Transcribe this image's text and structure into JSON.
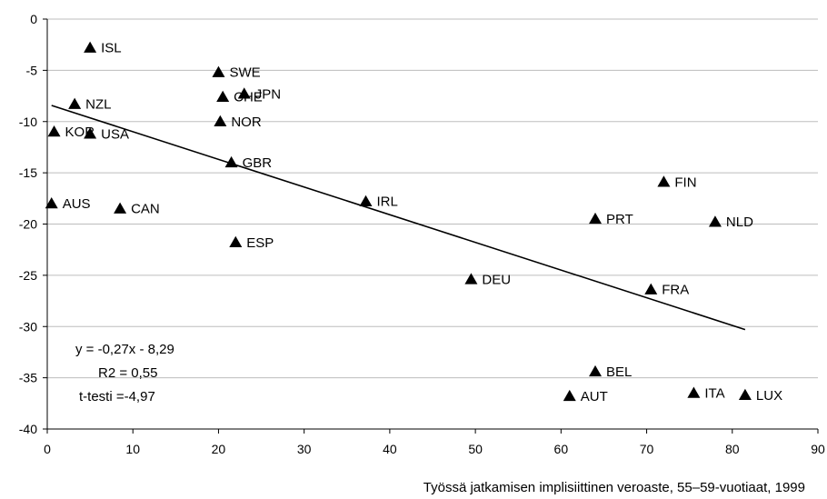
{
  "chart_data": {
    "type": "scatter",
    "title": "",
    "xlabel": "Työssä jatkamisen implisiittinen veroaste, 55–59-vuotiaat, 1999",
    "ylabel": "",
    "xlim": [
      0,
      90
    ],
    "ylim": [
      -40,
      0
    ],
    "xticks": [
      0,
      10,
      20,
      30,
      40,
      50,
      60,
      70,
      80,
      90
    ],
    "yticks": [
      0,
      -5,
      -10,
      -15,
      -20,
      -25,
      -30,
      -35,
      -40
    ],
    "grid": "horizontal",
    "legend": "none",
    "marker": "triangle",
    "marker_color": "#000000",
    "points": [
      {
        "label": "ISL",
        "x": 5.0,
        "y": -2.8
      },
      {
        "label": "SWE",
        "x": 20.0,
        "y": -5.2
      },
      {
        "label": "JPN",
        "x": 23.0,
        "y": -7.3
      },
      {
        "label": "CHE",
        "x": 20.5,
        "y": -7.6
      },
      {
        "label": "NZL",
        "x": 3.2,
        "y": -8.3
      },
      {
        "label": "NOR",
        "x": 20.2,
        "y": -10.0
      },
      {
        "label": "KOR",
        "x": 0.8,
        "y": -11.0
      },
      {
        "label": "USA",
        "x": 5.0,
        "y": -11.2
      },
      {
        "label": "GBR",
        "x": 21.5,
        "y": -14.0
      },
      {
        "label": "AUS",
        "x": 0.5,
        "y": -18.0
      },
      {
        "label": "CAN",
        "x": 8.5,
        "y": -18.5
      },
      {
        "label": "IRL",
        "x": 37.2,
        "y": -17.8
      },
      {
        "label": "ESP",
        "x": 22.0,
        "y": -21.8
      },
      {
        "label": "DEU",
        "x": 49.5,
        "y": -25.4
      },
      {
        "label": "FIN",
        "x": 72.0,
        "y": -15.9
      },
      {
        "label": "PRT",
        "x": 64.0,
        "y": -19.5
      },
      {
        "label": "NLD",
        "x": 78.0,
        "y": -19.8
      },
      {
        "label": "FRA",
        "x": 70.5,
        "y": -26.4
      },
      {
        "label": "BEL",
        "x": 64.0,
        "y": -34.4
      },
      {
        "label": "AUT",
        "x": 61.0,
        "y": -36.8
      },
      {
        "label": "ITA",
        "x": 75.5,
        "y": -36.5
      },
      {
        "label": "LUX",
        "x": 81.5,
        "y": -36.7
      }
    ],
    "trendline": {
      "slope": -0.27,
      "intercept": -8.29,
      "x_range": [
        0.5,
        81.5
      ]
    },
    "annotations": [
      "y = -0,27x - 8,29",
      "R2 = 0,55",
      "t-testi =-4,97"
    ]
  }
}
